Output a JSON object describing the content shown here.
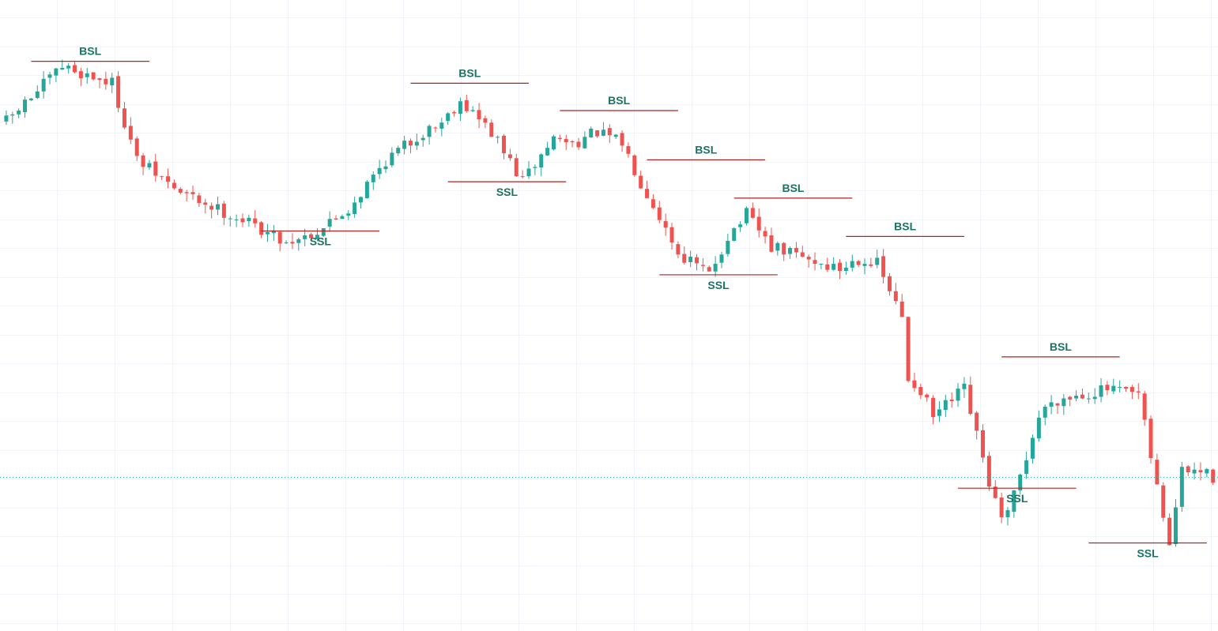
{
  "colors": {
    "background": "#ffffff",
    "grid": "#f0f3fa",
    "bullish": "#26a69a",
    "bearish": "#ef5350",
    "level_line": "#b22222",
    "ssl_line": "#444444",
    "label_text": "#1a7363",
    "price_line": "#26a69a"
  },
  "chart_data": {
    "type": "candlestick",
    "title": "",
    "xlabel": "",
    "ylabel": "",
    "grid": true,
    "ylim": [
      0,
      100
    ],
    "x": "candle index (1–195)",
    "candles": [],
    "key_points": [
      [
        1,
        84
      ],
      [
        10,
        94
      ],
      [
        18,
        91
      ],
      [
        22,
        77
      ],
      [
        29,
        71
      ],
      [
        41,
        65
      ],
      [
        46,
        62
      ],
      [
        51,
        64
      ],
      [
        56,
        68
      ],
      [
        62,
        77
      ],
      [
        68,
        82
      ],
      [
        71,
        84
      ],
      [
        74,
        88
      ],
      [
        79,
        82
      ],
      [
        84,
        73
      ],
      [
        89,
        81
      ],
      [
        92,
        80
      ],
      [
        96,
        82
      ],
      [
        100,
        80
      ],
      [
        103,
        73
      ],
      [
        105,
        69
      ],
      [
        109,
        60
      ],
      [
        114,
        56
      ],
      [
        117,
        63
      ],
      [
        120,
        67
      ],
      [
        124,
        61
      ],
      [
        127,
        60
      ],
      [
        132,
        58
      ],
      [
        135,
        57
      ],
      [
        138,
        59
      ],
      [
        141,
        58
      ],
      [
        145,
        48
      ],
      [
        146,
        37
      ],
      [
        148,
        35
      ],
      [
        150,
        30
      ],
      [
        155,
        35
      ],
      [
        159,
        18
      ],
      [
        161,
        11
      ],
      [
        162,
        12
      ],
      [
        167,
        30
      ],
      [
        169,
        33
      ],
      [
        173,
        34
      ],
      [
        178,
        35
      ],
      [
        183,
        34
      ],
      [
        186,
        17
      ],
      [
        188,
        7
      ],
      [
        190,
        20
      ],
      [
        193,
        20
      ],
      [
        195,
        19
      ]
    ],
    "current_price": 19,
    "levels": [
      {
        "kind": "BSL",
        "label": "BSL",
        "value": 95,
        "from": 5,
        "to": 24
      },
      {
        "kind": "SSL",
        "label": "SSL",
        "value": 64,
        "from": 42,
        "to": 61
      },
      {
        "kind": "BSL",
        "label": "BSL",
        "value": 91,
        "from": 66,
        "to": 85
      },
      {
        "kind": "SSL",
        "label": "SSL",
        "value": 73,
        "from": 72,
        "to": 91
      },
      {
        "kind": "BSL",
        "label": "BSL",
        "value": 86,
        "from": 90,
        "to": 109
      },
      {
        "kind": "BSL",
        "label": "BSL",
        "value": 77,
        "from": 104,
        "to": 123
      },
      {
        "kind": "BSL",
        "label": "BSL",
        "value": 70,
        "from": 118,
        "to": 137
      },
      {
        "kind": "SSL",
        "label": "SSL",
        "value": 56,
        "from": 106,
        "to": 125
      },
      {
        "kind": "BSL",
        "label": "BSL",
        "value": 63,
        "from": 136,
        "to": 155
      },
      {
        "kind": "BSL",
        "label": "BSL",
        "value": 41,
        "from": 161,
        "to": 180
      },
      {
        "kind": "SSL",
        "label": "SSL",
        "value": 17,
        "from": 154,
        "to": 173
      },
      {
        "kind": "SSL",
        "label": "SSL",
        "value": 7,
        "from": 175,
        "to": 194
      }
    ]
  }
}
